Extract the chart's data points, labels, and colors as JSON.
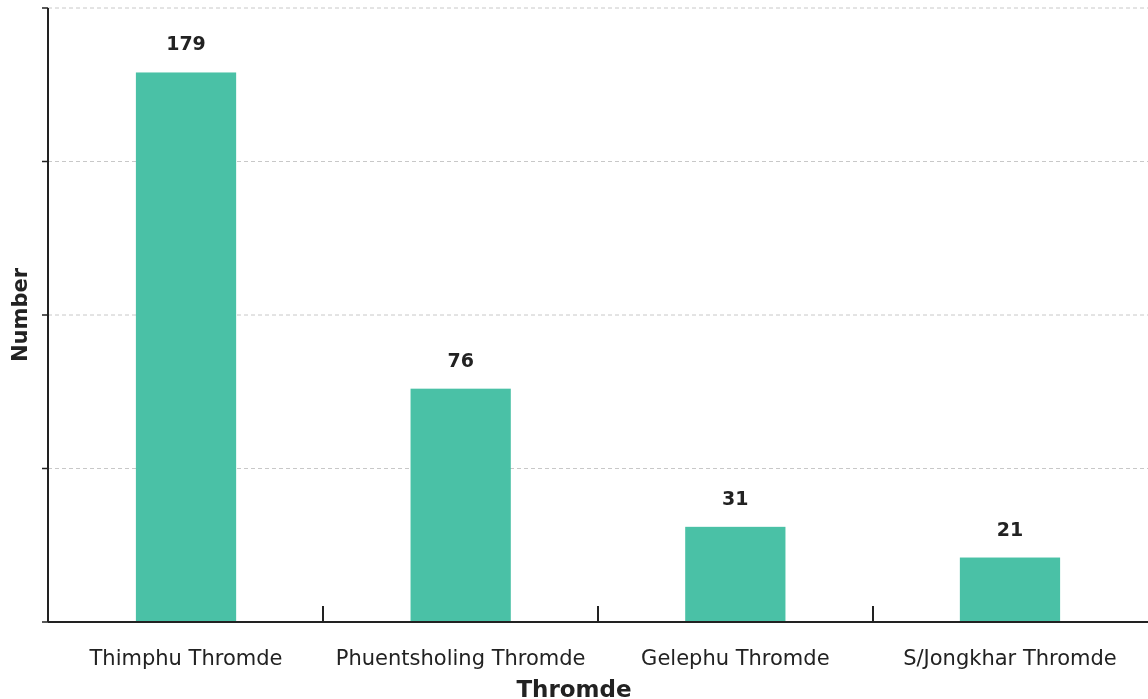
{
  "chart_data": {
    "type": "bar",
    "xlabel": "Thromde",
    "ylabel": "Number",
    "categories": [
      "Thimphu Thromde",
      "Phuentsholing Thromde",
      "Gelephu Thromde",
      "S/Jongkhar Thromde"
    ],
    "values": [
      179,
      76,
      31,
      21
    ],
    "color": "#4ac1a6",
    "ylim": [
      0,
      200
    ],
    "yticks": [
      {
        "value": 0,
        "label": null
      },
      {
        "value": 50,
        "label": null
      },
      {
        "value": 100,
        "label": null
      },
      {
        "value": 150,
        "label": null
      },
      {
        "value": 200,
        "label": null
      }
    ],
    "grid": "y",
    "tick_labels": "x",
    "data_labels": true
  }
}
